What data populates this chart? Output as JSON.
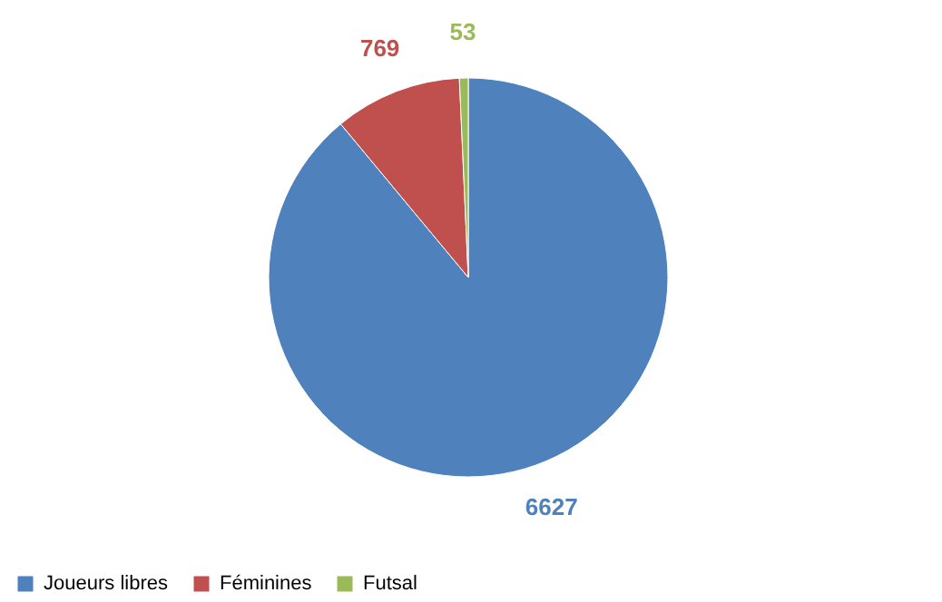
{
  "chart_data": {
    "type": "pie",
    "categories": [
      "Joueurs libres",
      "Féminines",
      "Futsal"
    ],
    "values": [
      6627,
      769,
      53
    ],
    "colors": [
      "#4f81bd",
      "#c0504d",
      "#9bbb59"
    ],
    "data_labels": true,
    "legend": "bottom"
  }
}
